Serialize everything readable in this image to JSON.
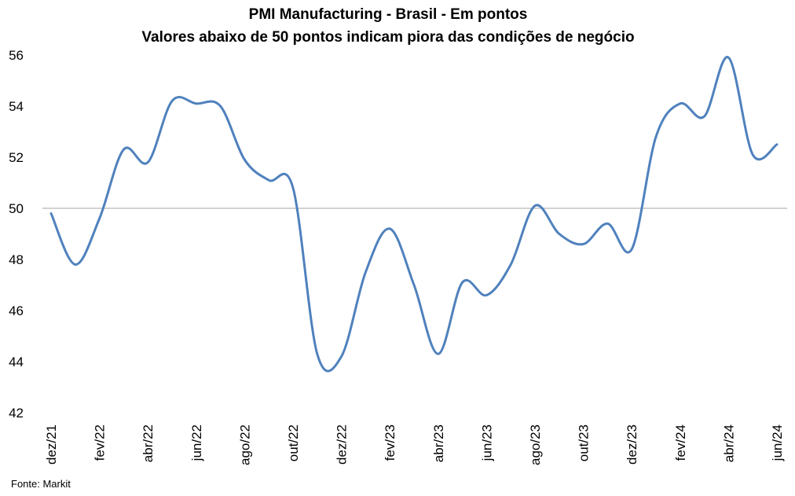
{
  "chart_data": {
    "type": "line",
    "title": "PMI Manufacturing - Brasil - Em pontos",
    "subtitle": "Valores abaixo de 50 pontos indicam piora das condições de negócio",
    "source": "Fonte: Markit",
    "xlabel": "",
    "ylabel": "",
    "ylim": [
      42,
      56
    ],
    "yticks": [
      42,
      44,
      46,
      48,
      50,
      52,
      54,
      56
    ],
    "reference_line": 50,
    "grid": false,
    "legend": "none",
    "line_color": "#4F81BD",
    "reference_color": "#A6A6A6",
    "x_tick_labels": [
      "dez/21",
      "fev/22",
      "abr/22",
      "jun/22",
      "ago/22",
      "out/22",
      "dez/22",
      "fev/23",
      "abr/23",
      "jun/23",
      "ago/23",
      "out/23",
      "dez/23",
      "fev/24",
      "abr/24",
      "jun/24"
    ],
    "x": [
      "dez/21",
      "jan/22",
      "fev/22",
      "mar/22",
      "abr/22",
      "mai/22",
      "jun/22",
      "jul/22",
      "ago/22",
      "set/22",
      "out/22",
      "nov/22",
      "dez/22",
      "jan/23",
      "fev/23",
      "mar/23",
      "abr/23",
      "mai/23",
      "jun/23",
      "jul/23",
      "ago/23",
      "set/23",
      "out/23",
      "nov/23",
      "dez/23",
      "jan/24",
      "fev/24",
      "mar/24",
      "abr/24",
      "mai/24",
      "jun/24"
    ],
    "series": [
      {
        "values": [
          49.8,
          47.8,
          49.6,
          52.3,
          51.8,
          54.2,
          54.1,
          54.0,
          51.9,
          51.1,
          50.8,
          44.3,
          44.2,
          47.5,
          49.2,
          47.0,
          44.3,
          47.1,
          46.6,
          47.8,
          50.1,
          49.0,
          48.6,
          49.4,
          48.4,
          52.8,
          54.1,
          53.6,
          55.9,
          52.1,
          52.5
        ]
      }
    ]
  }
}
